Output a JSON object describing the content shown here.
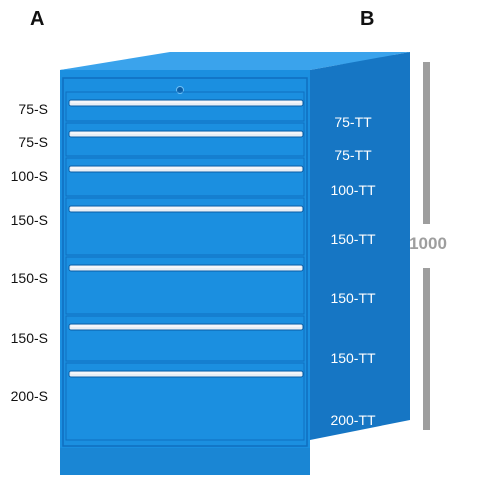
{
  "labels": {
    "column_a": "A",
    "column_b": "B",
    "height": "1000"
  },
  "drawers": [
    {
      "s": "75-S",
      "tt": "75-TT"
    },
    {
      "s": "75-S",
      "tt": "75-TT"
    },
    {
      "s": "100-S",
      "tt": "100-TT"
    },
    {
      "s": "150-S",
      "tt": "150-TT"
    },
    {
      "s": "150-S",
      "tt": "150-TT"
    },
    {
      "s": "150-S",
      "tt": "150-TT"
    },
    {
      "s": "200-S",
      "tt": "200-TT"
    }
  ],
  "colors": {
    "cabinet_front": "#1b8fe0",
    "cabinet_side": "#1676c4",
    "cabinet_top": "#3aa3ec",
    "handle": "#e8eef5",
    "dimension_bar": "#9e9e9e"
  }
}
